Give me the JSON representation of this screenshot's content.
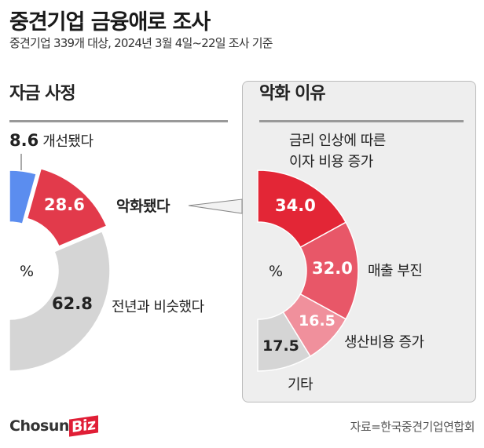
{
  "header": {
    "title": "중견기업 금융애로 조사",
    "subtitle": "중견기업 339개 대상, 2024년 3월 4일~22일 조사 기준"
  },
  "chart_data": [
    {
      "type": "pie",
      "variant": "half-donut",
      "title": "자금 사정",
      "unit_label": "%",
      "slices": [
        {
          "label": "개선됐다",
          "value": 8.6,
          "display": "8.6",
          "color": "#5b8def"
        },
        {
          "label": "악화됐다",
          "value": 28.6,
          "display": "28.6",
          "color": "#e23a4b",
          "exploded": true
        },
        {
          "label": "전년과 비슷했다",
          "value": 62.8,
          "display": "62.8",
          "color": "#d5d5d5"
        }
      ]
    },
    {
      "type": "pie",
      "variant": "half-donut",
      "title": "악화 이유",
      "unit_label": "%",
      "slices": [
        {
          "label_line1": "금리 인상에 따른",
          "label_line2": "이자 비용 증가",
          "value": 34.0,
          "display": "34.0",
          "color": "#e32636"
        },
        {
          "label": "매출 부진",
          "value": 32.0,
          "display": "32.0",
          "color": "#e85768"
        },
        {
          "label": "생산비용 증가",
          "value": 16.5,
          "display": "16.5",
          "color": "#f0909c"
        },
        {
          "label": "기타",
          "value": 17.5,
          "display": "17.5",
          "color": "#d5d5d5"
        }
      ]
    }
  ],
  "footer": {
    "logo_main": "Chosun",
    "logo_accent": "Biz",
    "source": "자료=한국중견기업연합회"
  }
}
